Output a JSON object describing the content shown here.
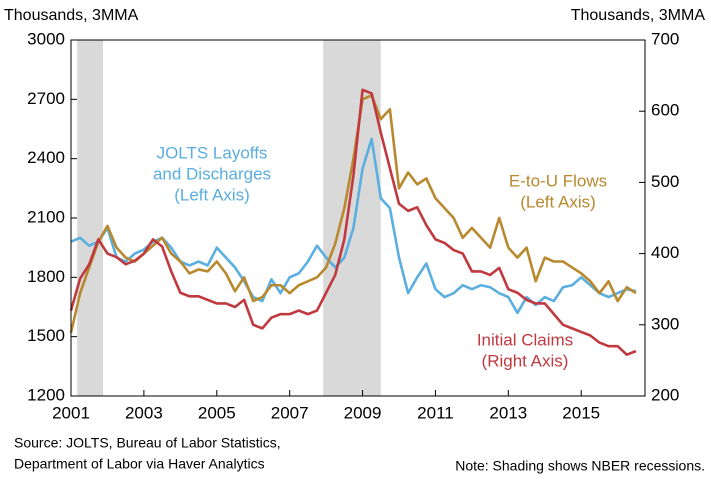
{
  "chart_data": {
    "type": "line",
    "y_label": "Thousands, 3MMA",
    "y2_label": "Thousands, 3MMA",
    "source": [
      "Source: JOLTS, Bureau of Labor Statistics,",
      "Department of Labor via Haver Analytics"
    ],
    "note": "Note: Shading shows NBER recessions.",
    "shaded_regions": [
      [
        2001.17,
        2001.88
      ],
      [
        2007.92,
        2009.5
      ]
    ],
    "shade_color": "#d9d9d9",
    "xlim": [
      2001,
      2016.75
    ],
    "xticks": [
      2001,
      2003,
      2005,
      2007,
      2009,
      2011,
      2013,
      2015
    ],
    "ylim": [
      1200,
      3000
    ],
    "yticks": [
      1200,
      1500,
      1800,
      2100,
      2400,
      2700,
      3000
    ],
    "y2lim": [
      200,
      700
    ],
    "y2ticks": [
      200,
      300,
      400,
      500,
      600,
      700
    ],
    "x": [
      2001,
      2001.25,
      2001.5,
      2001.75,
      2002,
      2002.25,
      2002.5,
      2002.75,
      2003,
      2003.25,
      2003.5,
      2003.75,
      2004,
      2004.25,
      2004.5,
      2004.75,
      2005,
      2005.25,
      2005.5,
      2005.75,
      2006,
      2006.25,
      2006.5,
      2006.75,
      2007,
      2007.25,
      2007.5,
      2007.75,
      2008,
      2008.25,
      2008.5,
      2008.75,
      2009,
      2009.25,
      2009.5,
      2009.75,
      2010,
      2010.25,
      2010.5,
      2010.75,
      2011,
      2011.25,
      2011.5,
      2011.75,
      2012,
      2012.25,
      2012.5,
      2012.75,
      2013,
      2013.25,
      2013.5,
      2013.75,
      2014,
      2014.25,
      2014.5,
      2014.75,
      2015,
      2015.25,
      2015.5,
      2015.75,
      2016,
      2016.25,
      2016.5
    ],
    "series": [
      {
        "name": "JOLTS Layoffs and Discharges",
        "color": "#5aaee0",
        "axis": "y",
        "values": [
          1980,
          2000,
          1960,
          1980,
          2050,
          1900,
          1880,
          1920,
          1940,
          1980,
          2000,
          1950,
          1880,
          1860,
          1880,
          1860,
          1950,
          1900,
          1850,
          1780,
          1700,
          1680,
          1790,
          1720,
          1800,
          1820,
          1880,
          1960,
          1900,
          1850,
          1900,
          2050,
          2350,
          2500,
          2200,
          2150,
          1900,
          1720,
          1800,
          1870,
          1740,
          1700,
          1720,
          1760,
          1740,
          1760,
          1750,
          1720,
          1700,
          1620,
          1700,
          1660,
          1700,
          1680,
          1750,
          1760,
          1800,
          1760,
          1720,
          1700,
          1720,
          1740,
          1730
        ]
      },
      {
        "name": "E-to-U Flows",
        "color": "#b8892e",
        "axis": "y",
        "values": [
          1520,
          1720,
          1850,
          1980,
          2060,
          1950,
          1900,
          1880,
          1920,
          1960,
          2000,
          1920,
          1880,
          1820,
          1840,
          1830,
          1880,
          1820,
          1730,
          1800,
          1680,
          1700,
          1760,
          1760,
          1720,
          1760,
          1780,
          1800,
          1850,
          1970,
          2150,
          2400,
          2700,
          2720,
          2600,
          2650,
          2250,
          2330,
          2270,
          2300,
          2200,
          2150,
          2100,
          2000,
          2050,
          2000,
          1950,
          2100,
          1950,
          1900,
          1950,
          1780,
          1900,
          1880,
          1880,
          1850,
          1820,
          1780,
          1720,
          1780,
          1680,
          1750,
          1720
        ]
      },
      {
        "name": "Initial Claims",
        "color": "#c0393f",
        "axis": "y2",
        "values": [
          320,
          365,
          385,
          420,
          400,
          395,
          385,
          390,
          400,
          420,
          410,
          375,
          345,
          340,
          340,
          335,
          330,
          330,
          325,
          335,
          300,
          295,
          310,
          315,
          315,
          320,
          315,
          320,
          345,
          370,
          420,
          510,
          630,
          625,
          570,
          520,
          470,
          460,
          465,
          440,
          420,
          415,
          405,
          400,
          375,
          375,
          370,
          380,
          350,
          345,
          335,
          330,
          330,
          315,
          300,
          295,
          290,
          285,
          275,
          270,
          270,
          258,
          263
        ]
      }
    ],
    "annotations": [
      {
        "lines": [
          "JOLTS Layoffs",
          "and Discharges",
          "(Left Axis)"
        ],
        "color": "#5aaee0"
      },
      {
        "lines": [
          "E-to-U Flows",
          "(Left Axis)"
        ],
        "color": "#b8892e"
      },
      {
        "lines": [
          "Initial Claims",
          "(Right Axis)"
        ],
        "color": "#c0393f"
      }
    ]
  }
}
